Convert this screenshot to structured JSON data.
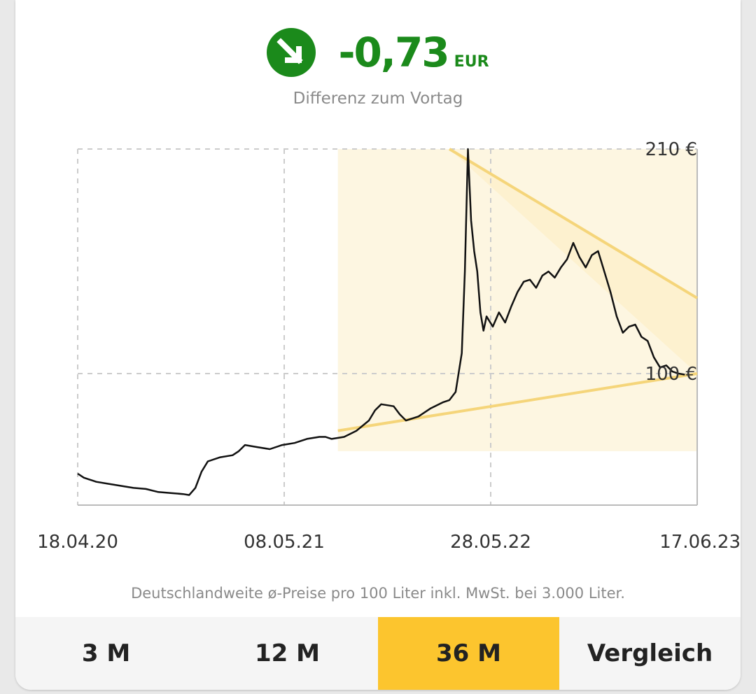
{
  "header": {
    "value": "-0,73",
    "unit": "EUR",
    "subtitle": "Differenz zum Vortag",
    "trend_icon": "arrow-down-right-icon",
    "accent_color": "#1b8a1b"
  },
  "chart_data": {
    "type": "line",
    "title": "",
    "xlabel": "",
    "ylabel": "",
    "x_ticks": [
      "18.04.20",
      "08.05.21",
      "28.05.22",
      "17.06.23"
    ],
    "y_ticks": [
      "210 €",
      "100 €"
    ],
    "ylim": [
      40,
      210
    ],
    "grid": true,
    "series": [
      {
        "values": [
          [
            0.0,
            51
          ],
          [
            0.01,
            49
          ],
          [
            0.03,
            47
          ],
          [
            0.05,
            46
          ],
          [
            0.07,
            45
          ],
          [
            0.09,
            44
          ],
          [
            0.11,
            43.5
          ],
          [
            0.13,
            42
          ],
          [
            0.15,
            41.5
          ],
          [
            0.17,
            41
          ],
          [
            0.18,
            40.5
          ],
          [
            0.19,
            44
          ],
          [
            0.2,
            52
          ],
          [
            0.21,
            57
          ],
          [
            0.23,
            59
          ],
          [
            0.25,
            60
          ],
          [
            0.26,
            62
          ],
          [
            0.27,
            65
          ],
          [
            0.29,
            64
          ],
          [
            0.31,
            63
          ],
          [
            0.33,
            65
          ],
          [
            0.35,
            66
          ],
          [
            0.37,
            68
          ],
          [
            0.39,
            69
          ],
          [
            0.4,
            69
          ],
          [
            0.41,
            68
          ],
          [
            0.43,
            69
          ],
          [
            0.45,
            72
          ],
          [
            0.47,
            77
          ],
          [
            0.48,
            82
          ],
          [
            0.49,
            85
          ],
          [
            0.51,
            84
          ],
          [
            0.52,
            80
          ],
          [
            0.53,
            77
          ],
          [
            0.55,
            79
          ],
          [
            0.57,
            83
          ],
          [
            0.59,
            86
          ],
          [
            0.6,
            87
          ],
          [
            0.61,
            91
          ],
          [
            0.62,
            110
          ],
          [
            0.625,
            150
          ],
          [
            0.63,
            210
          ],
          [
            0.635,
            175
          ],
          [
            0.64,
            160
          ],
          [
            0.645,
            150
          ],
          [
            0.65,
            130
          ],
          [
            0.655,
            121
          ],
          [
            0.66,
            128
          ],
          [
            0.67,
            123
          ],
          [
            0.68,
            130
          ],
          [
            0.69,
            125
          ],
          [
            0.7,
            133
          ],
          [
            0.71,
            140
          ],
          [
            0.72,
            145
          ],
          [
            0.73,
            146
          ],
          [
            0.74,
            142
          ],
          [
            0.75,
            148
          ],
          [
            0.76,
            150
          ],
          [
            0.77,
            147
          ],
          [
            0.78,
            152
          ],
          [
            0.79,
            156
          ],
          [
            0.8,
            164
          ],
          [
            0.81,
            157
          ],
          [
            0.82,
            152
          ],
          [
            0.83,
            158
          ],
          [
            0.84,
            160
          ],
          [
            0.85,
            150
          ],
          [
            0.86,
            140
          ],
          [
            0.87,
            128
          ],
          [
            0.88,
            120
          ],
          [
            0.89,
            123
          ],
          [
            0.9,
            124
          ],
          [
            0.91,
            118
          ],
          [
            0.92,
            116
          ],
          [
            0.93,
            108
          ],
          [
            0.94,
            103
          ],
          [
            0.95,
            104
          ],
          [
            0.96,
            101
          ],
          [
            0.97,
            100
          ],
          [
            0.98,
            99.5
          ]
        ]
      }
    ],
    "highlight_region": {
      "x_start": 0.42,
      "x_end": 1.0,
      "y_range": [
        62,
        210
      ]
    },
    "triangle": {
      "upper": [
        [
          0.6,
          210
        ],
        [
          1.0,
          137
        ]
      ],
      "lower": [
        [
          0.42,
          72
        ],
        [
          1.0,
          100
        ]
      ]
    },
    "colors": {
      "line": "#111111",
      "band_fill": "#fdf6e1",
      "triangle_line": "#f5d57a",
      "grid": "#cccccc"
    }
  },
  "footnote": "Deutschlandweite ø-Preise pro 100 Liter inkl. MwSt. bei 3.000 Liter.",
  "tabs": [
    {
      "label": "3 M",
      "active": false
    },
    {
      "label": "12 M",
      "active": false
    },
    {
      "label": "36 M",
      "active": true
    },
    {
      "label": "Vergleich",
      "active": false
    }
  ],
  "active_tab_color": "#fcc52e"
}
